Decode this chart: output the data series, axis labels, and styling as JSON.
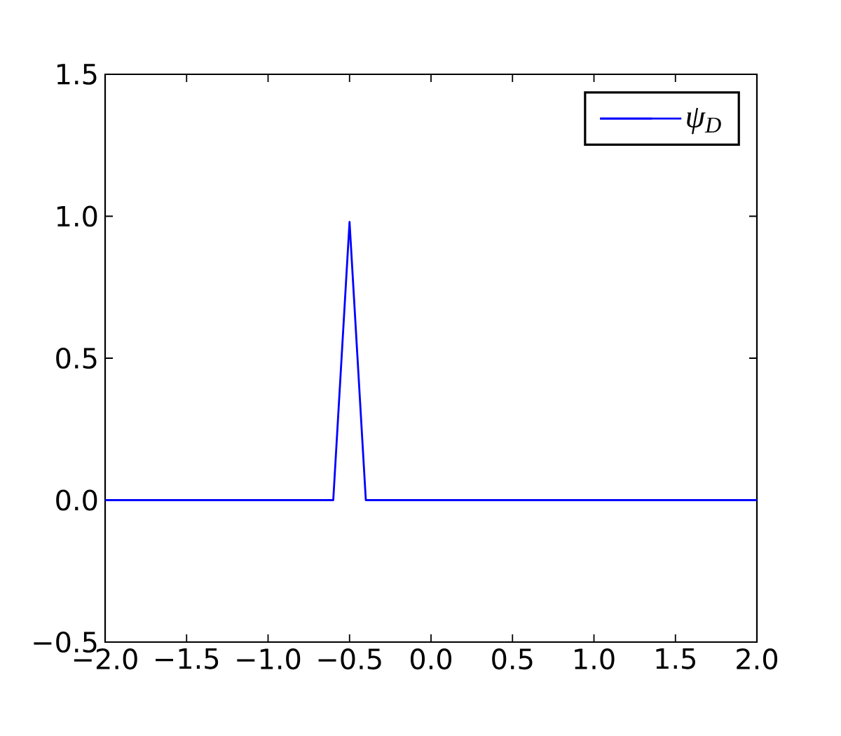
{
  "chart_data": {
    "type": "line",
    "x": [
      -2,
      -0.6,
      -0.5,
      -0.4,
      2
    ],
    "series": [
      {
        "name": "ψ$_{D}$",
        "color": "#0000ff",
        "values": [
          0,
          0,
          0.98,
          0,
          0
        ]
      }
    ],
    "xlim": [
      -2,
      2
    ],
    "ylim": [
      -0.5,
      1.5
    ],
    "xticks": [
      {
        "value": -2,
        "label": "−2.0"
      },
      {
        "value": -1.5,
        "label": "−1.5"
      },
      {
        "value": -1,
        "label": "−1.0"
      },
      {
        "value": -0.5,
        "label": "−0.5"
      },
      {
        "value": 0,
        "label": "0.0"
      },
      0.5,
      {
        "value": 1,
        "label": "1.0"
      },
      1.5,
      {
        "value": 2,
        "label": "2.0"
      }
    ],
    "yticks": [
      {
        "value": -0.5,
        "label": "−0.5"
      },
      {
        "value": 0,
        "label": "0.0"
      },
      0.5,
      {
        "value": 1,
        "label": "1.0"
      },
      1.5
    ],
    "legend": "top right",
    "marker": "none",
    "line_style": "solid"
  }
}
